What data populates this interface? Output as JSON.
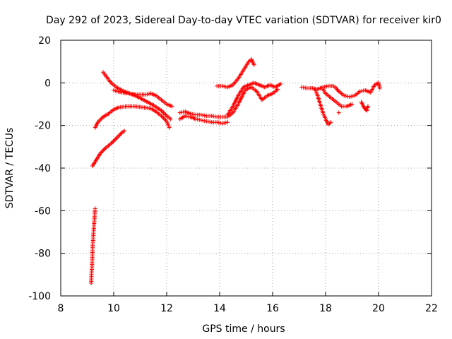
{
  "chart_data": {
    "type": "scatter",
    "title": "Day 292 of 2023, Sidereal Day-to-day VTEC variation (SDTVAR) for receiver kir0",
    "xlabel": "GPS time / hours",
    "ylabel": "SDTVAR / TECUs",
    "xlim": [
      8,
      22
    ],
    "ylim": [
      -100,
      20
    ],
    "xticks": [
      8,
      10,
      12,
      14,
      16,
      18,
      20,
      22
    ],
    "yticks": [
      -100,
      -80,
      -60,
      -40,
      -20,
      0,
      20
    ],
    "xtick_labels": [
      "8",
      "10",
      "12",
      "14",
      "16",
      "18",
      "20",
      "22"
    ],
    "ytick_labels": [
      "-100",
      "-80",
      "-60",
      "-40",
      "-20",
      "0",
      "20"
    ],
    "grid": true,
    "marker": "+",
    "color": "#ff0000",
    "series": [
      {
        "points": [
          [
            9.15,
            -94
          ],
          [
            9.16,
            -90
          ],
          [
            9.18,
            -86
          ],
          [
            9.19,
            -82
          ],
          [
            9.2,
            -78
          ],
          [
            9.22,
            -74
          ],
          [
            9.24,
            -70
          ],
          [
            9.26,
            -66
          ],
          [
            9.28,
            -62
          ],
          [
            9.3,
            -59
          ]
        ]
      },
      {
        "points": [
          [
            9.2,
            -39
          ],
          [
            9.35,
            -36
          ],
          [
            9.5,
            -33
          ],
          [
            9.7,
            -30.5
          ],
          [
            9.9,
            -28.5
          ],
          [
            10.1,
            -26
          ],
          [
            10.3,
            -23.5
          ],
          [
            10.4,
            -22.5
          ]
        ]
      },
      {
        "points": [
          [
            9.3,
            -21
          ],
          [
            9.4,
            -18.5
          ],
          [
            9.6,
            -16
          ],
          [
            9.8,
            -14.5
          ],
          [
            10,
            -12.5
          ],
          [
            10.2,
            -11.5
          ],
          [
            10.5,
            -11
          ],
          [
            10.8,
            -11
          ],
          [
            11.1,
            -11.5
          ],
          [
            11.4,
            -12
          ],
          [
            11.6,
            -13.5
          ],
          [
            11.8,
            -15.5
          ],
          [
            12,
            -18
          ],
          [
            12.1,
            -21
          ]
        ]
      },
      {
        "points": [
          [
            9.6,
            5
          ],
          [
            9.75,
            2.5
          ],
          [
            9.9,
            0
          ],
          [
            10.1,
            -2
          ],
          [
            10.3,
            -3.5
          ],
          [
            10.6,
            -5
          ],
          [
            10.9,
            -6.5
          ],
          [
            11.2,
            -8.5
          ],
          [
            11.5,
            -10.5
          ],
          [
            11.8,
            -13
          ],
          [
            12,
            -15.5
          ],
          [
            12.15,
            -17
          ]
        ]
      },
      {
        "points": [
          [
            10,
            -3.5
          ],
          [
            10.3,
            -4.5
          ],
          [
            10.6,
            -5
          ],
          [
            10.9,
            -5.5
          ],
          [
            11.2,
            -5.5
          ],
          [
            11.4,
            -5
          ],
          [
            11.6,
            -6
          ],
          [
            11.8,
            -8
          ],
          [
            12,
            -10
          ],
          [
            12.2,
            -11
          ]
        ]
      },
      {
        "points": [
          [
            12.5,
            -17
          ],
          [
            12.7,
            -15.5
          ],
          [
            12.9,
            -16
          ],
          [
            13.1,
            -17
          ],
          [
            13.3,
            -17.5
          ],
          [
            13.5,
            -18
          ],
          [
            13.7,
            -18.5
          ],
          [
            13.9,
            -18.5
          ],
          [
            14.1,
            -19
          ],
          [
            14.3,
            -18.5
          ]
        ]
      },
      {
        "points": [
          [
            12.5,
            -14
          ],
          [
            12.7,
            -13.5
          ],
          [
            12.9,
            -14.5
          ],
          [
            13.1,
            -15
          ],
          [
            13.3,
            -15
          ],
          [
            13.5,
            -15.5
          ],
          [
            13.7,
            -15.5
          ],
          [
            13.9,
            -16
          ],
          [
            14.1,
            -16
          ],
          [
            14.3,
            -16
          ],
          [
            14.5,
            -14
          ],
          [
            14.7,
            -10
          ],
          [
            14.9,
            -5
          ],
          [
            15,
            -3
          ],
          [
            15.2,
            -2
          ],
          [
            15.4,
            -4
          ],
          [
            15.6,
            -8
          ],
          [
            15.8,
            -6
          ],
          [
            16,
            -5
          ],
          [
            16.2,
            -3
          ]
        ]
      },
      {
        "points": [
          [
            14.3,
            -15
          ],
          [
            14.5,
            -11
          ],
          [
            14.7,
            -6
          ],
          [
            14.9,
            -2
          ],
          [
            15.1,
            -1
          ],
          [
            15.3,
            0
          ],
          [
            15.5,
            -1
          ],
          [
            15.7,
            -2
          ],
          [
            15.9,
            -1
          ],
          [
            16.1,
            -2
          ],
          [
            16.3,
            -0.5
          ]
        ]
      },
      {
        "points": [
          [
            13.9,
            -1.5
          ],
          [
            14.1,
            -1.5
          ],
          [
            14.3,
            -2
          ],
          [
            14.5,
            -1
          ],
          [
            14.7,
            2
          ],
          [
            14.9,
            6
          ],
          [
            15.1,
            10
          ],
          [
            15.2,
            11
          ],
          [
            15.3,
            8.5
          ]
        ]
      },
      {
        "points": [
          [
            17.1,
            -2
          ],
          [
            17.3,
            -2.5
          ],
          [
            17.5,
            -2.5
          ],
          [
            17.7,
            -3
          ],
          [
            17.9,
            -2
          ],
          [
            18.1,
            -1.5
          ],
          [
            18.3,
            -1.5
          ],
          [
            18.4,
            -2.5
          ],
          [
            18.5,
            -4
          ],
          [
            18.7,
            -6
          ],
          [
            18.9,
            -6.5
          ],
          [
            19.1,
            -6
          ],
          [
            19.3,
            -4
          ],
          [
            19.5,
            -3.5
          ],
          [
            19.7,
            -4.5
          ],
          [
            19.85,
            -1
          ],
          [
            20,
            0
          ],
          [
            20.05,
            -2.5
          ]
        ]
      },
      {
        "points": [
          [
            17.9,
            -3
          ],
          [
            18,
            -5
          ],
          [
            18.2,
            -7
          ],
          [
            18.4,
            -9
          ],
          [
            18.6,
            -11
          ],
          [
            18.8,
            -11
          ],
          [
            19,
            -10
          ]
        ]
      },
      {
        "points": [
          [
            17.6,
            -3
          ],
          [
            17.7,
            -6
          ],
          [
            17.8,
            -10
          ],
          [
            17.9,
            -14
          ],
          [
            18,
            -17
          ],
          [
            18.1,
            -19.5
          ],
          [
            18.2,
            -18.5
          ]
        ]
      },
      {
        "points": [
          [
            19.35,
            -9
          ],
          [
            19.45,
            -11.5
          ],
          [
            19.55,
            -13
          ],
          [
            19.6,
            -11
          ]
        ]
      },
      {
        "points": [
          [
            18.5,
            -14
          ]
        ]
      }
    ]
  }
}
